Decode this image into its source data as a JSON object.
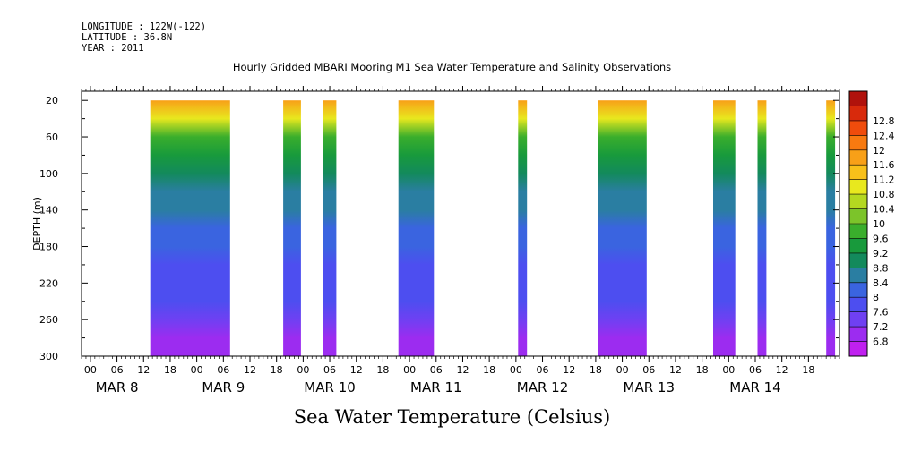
{
  "header": {
    "longitude": "LONGITUDE : 122W(-122)",
    "latitude": "LATITUDE : 36.8N",
    "year": "YEAR : 2011"
  },
  "title": "Hourly Gridded MBARI Mooring M1 Sea Water Temperature and Salinity Observations",
  "footer_title": "Sea Water Temperature (Celsius)",
  "chart_data": {
    "type": "heatmap",
    "title": "Hourly Gridded MBARI Mooring M1 Sea Water Temperature and Salinity Observations",
    "xlabel": "",
    "ylabel": "DEPTH (m)",
    "colorbar_label": "Sea Water Temperature (Celsius)",
    "x_unit": "hours since MAR 8 00:00",
    "xlim": [
      -2,
      169
    ],
    "ylim": [
      300,
      10
    ],
    "y_ticks": [
      20,
      60,
      100,
      140,
      180,
      220,
      260,
      300
    ],
    "x_tick_labels": [
      "00",
      "06",
      "12",
      "18",
      "00",
      "06",
      "12",
      "18",
      "00",
      "06",
      "12",
      "18",
      "00",
      "06",
      "12",
      "18",
      "00",
      "06",
      "12",
      "18",
      "00",
      "06",
      "12",
      "18",
      "00",
      "06",
      "12",
      "18"
    ],
    "x_tick_hours": [
      0,
      6,
      12,
      18,
      24,
      30,
      36,
      42,
      48,
      54,
      60,
      66,
      72,
      78,
      84,
      90,
      96,
      102,
      108,
      114,
      120,
      126,
      132,
      138,
      144,
      150,
      156,
      162
    ],
    "day_labels": [
      "MAR  8",
      "MAR  9",
      "MAR 10",
      "MAR 11",
      "MAR 12",
      "MAR 13",
      "MAR 14"
    ],
    "day_label_hours": [
      6,
      30,
      54,
      78,
      102,
      126,
      150
    ],
    "colorbar": {
      "levels": [
        6.8,
        7.2,
        7.6,
        8,
        8.4,
        8.8,
        9.2,
        9.6,
        10,
        10.4,
        10.8,
        11.2,
        11.6,
        12,
        12.4,
        12.8
      ],
      "colors": [
        "#c020f0",
        "#9c2cf0",
        "#6f40f2",
        "#4d4ef0",
        "#3a64e0",
        "#2a7ea2",
        "#138a5c",
        "#189a3c",
        "#3aae2c",
        "#7cc42a",
        "#b4d820",
        "#e8e81e",
        "#f8c01a",
        "#f8a018",
        "#f87a10",
        "#f04c0c",
        "#d82a0c",
        "#b0120c"
      ]
    },
    "data_segments_hours": [
      [
        13.5,
        31.5
      ],
      [
        43.5,
        47.5
      ],
      [
        52.5,
        55.5
      ],
      [
        69.5,
        77.5
      ],
      [
        96.5,
        98.5
      ],
      [
        114.5,
        125.5
      ],
      [
        140.5,
        145.5
      ],
      [
        150.5,
        152.5
      ],
      [
        166,
        168
      ]
    ],
    "profile_depth_m": [
      20,
      40,
      60,
      80,
      100,
      120,
      140,
      160,
      180,
      200,
      220,
      240,
      260,
      280,
      300
    ],
    "profile_temp_c": [
      11.8,
      10.8,
      9.9,
      9.3,
      8.8,
      8.6,
      8.4,
      8.2,
      8.05,
      7.9,
      7.8,
      7.7,
      7.5,
      7.1,
      6.9
    ]
  }
}
